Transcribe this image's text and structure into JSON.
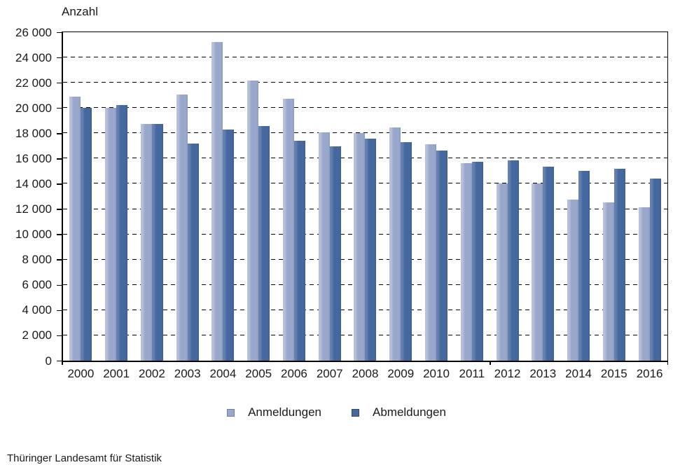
{
  "chart_data": {
    "type": "bar",
    "title": "",
    "ylabel": "Anzahl",
    "xlabel": "",
    "ylim": [
      0,
      26000
    ],
    "y_tick_step": 2000,
    "y_tick_labels": [
      "0",
      "2 000",
      "4 000",
      "6 000",
      "8 000",
      "10 000",
      "12 000",
      "14 000",
      "16 000",
      "18 000",
      "20 000",
      "22 000",
      "24 000",
      "26 000"
    ],
    "grid": "horizontal-dashed",
    "legend_position": "bottom-center",
    "categories": [
      "2000",
      "2001",
      "2002",
      "2003",
      "2004",
      "2005",
      "2006",
      "2007",
      "2008",
      "2009",
      "2010",
      "2011",
      "2012",
      "2013",
      "2014",
      "2015",
      "2016"
    ],
    "series": [
      {
        "name": "Anmeldungen",
        "color": "#99a7cb",
        "color_highlight": "#b7c0db",
        "color_shade": "#8d9cc4",
        "swatch_border": "#6f7ea8",
        "values": [
          20900,
          20000,
          18750,
          21050,
          25250,
          22200,
          20750,
          18050,
          18000,
          18450,
          17150,
          15650,
          14000,
          14000,
          12750,
          12550,
          12150
        ]
      },
      {
        "name": "Abmeldungen",
        "color": "#45689f",
        "color_highlight": "#6580ae",
        "color_shade": "#3d5f96",
        "swatch_border": "#2f4a78",
        "values": [
          20000,
          20250,
          18750,
          17200,
          18300,
          18550,
          17400,
          16950,
          17600,
          17300,
          16650,
          15750,
          15850,
          15350,
          15000,
          15200,
          14400
        ]
      }
    ],
    "source": "Thüringer Landesamt für Statistik"
  }
}
